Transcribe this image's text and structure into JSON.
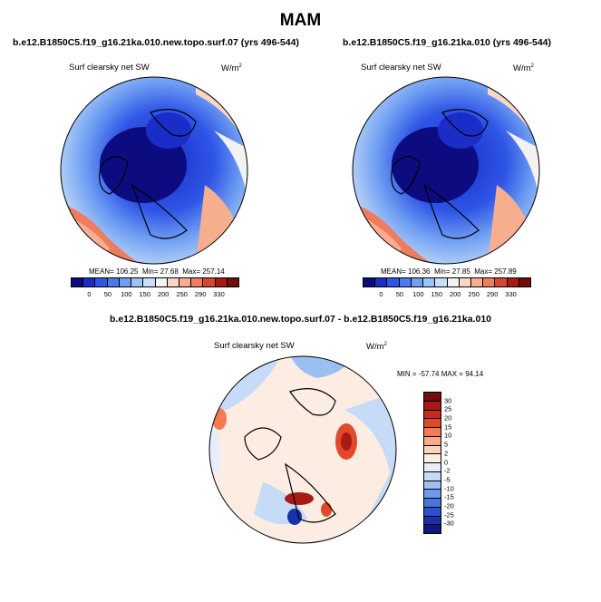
{
  "figure": {
    "season": "MAM",
    "colors": {
      "absolute_scale": [
        "#0c0c80",
        "#1a2dc8",
        "#2f55e6",
        "#4a7aee",
        "#6f9ef2",
        "#9cc3f6",
        "#c7e0f9",
        "#f2f2f2",
        "#fbd6c3",
        "#f7ae8f",
        "#ef7c5f",
        "#d84530",
        "#a81b15",
        "#730d0b"
      ],
      "diff_scale": [
        "#730d0b",
        "#a81b15",
        "#c52a1c",
        "#e04a2a",
        "#f37a52",
        "#f9a986",
        "#fcd3be",
        "#fdece2",
        "#e6eefb",
        "#c6dbf7",
        "#9cbff2",
        "#7099e9",
        "#4a75df",
        "#2c50ce",
        "#1732ac",
        "#0c1a80"
      ],
      "land": "#f7f7f7",
      "coastline": "#000000"
    },
    "panels": [
      {
        "case": "b.e12.B1850C5.f19_g16.21ka.010.new.topo.surf.07 (yrs 496-544)",
        "variable": "Surf clearsky net SW",
        "units": "W/m",
        "units_exp": "2",
        "mean_label": "MEAN=",
        "mean": "106.25",
        "min_label": "Min=",
        "min": "27.68",
        "max_label": "Max=",
        "max": "257.14",
        "ticks": [
          "0",
          "50",
          "100",
          "150",
          "200",
          "250",
          "290",
          "330"
        ]
      },
      {
        "case": "b.e12.B1850C5.f19_g16.21ka.010 (yrs 496-544)",
        "variable": "Surf clearsky net SW",
        "units": "W/m",
        "units_exp": "2",
        "mean_label": "MEAN=",
        "mean": "106.36",
        "min_label": "Min=",
        "min": "27.85",
        "max_label": "Max=",
        "max": "257.89",
        "ticks": [
          "0",
          "50",
          "100",
          "150",
          "200",
          "250",
          "290",
          "330"
        ]
      }
    ],
    "difference": {
      "title": "b.e12.B1850C5.f19_g16.21ka.010.new.topo.surf.07 - b.e12.B1850C5.f19_g16.21ka.010",
      "variable": "Surf clearsky net SW",
      "units": "W/m",
      "units_exp": "2",
      "min_label": "MIN =",
      "min": "-57.74",
      "max_label": "MAX =",
      "max": "94.14",
      "ticks": [
        "30",
        "25",
        "20",
        "15",
        "10",
        "5",
        "2",
        "0",
        "-2",
        "-5",
        "-10",
        "-15",
        "-20",
        "-25",
        "-30"
      ]
    }
  }
}
